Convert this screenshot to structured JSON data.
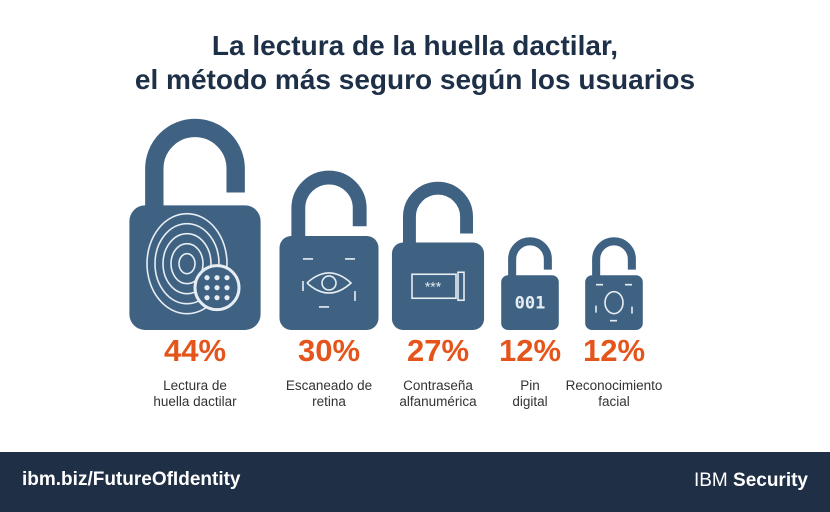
{
  "chart_data": {
    "type": "pictogram",
    "title": [
      "La lectura de la huella dactilar,",
      "el método más seguro según los usuarios"
    ],
    "categories": [
      [
        "Lectura de",
        "huella dactilar"
      ],
      [
        "Escaneado de",
        "retina"
      ],
      [
        "Contraseña",
        "alfanumérica"
      ],
      [
        "Pin",
        "digital"
      ],
      [
        "Reconocimiento",
        "facial"
      ]
    ],
    "values": [
      44,
      30,
      27,
      12,
      12
    ],
    "value_labels": [
      "44%",
      "30%",
      "27%",
      "12%",
      "12%"
    ],
    "color": "#3f6283"
  },
  "footer": {
    "url": "ibm.biz/FutureOfIdentity",
    "brand": [
      "IBM",
      "Security"
    ]
  }
}
